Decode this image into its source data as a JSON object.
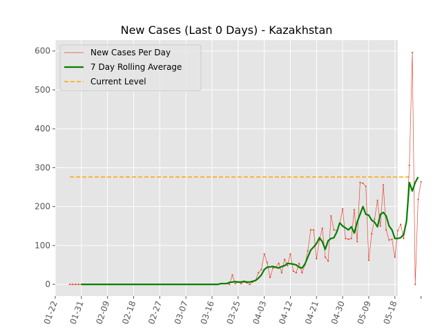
{
  "chart_data": {
    "type": "line",
    "title": "New Cases (Last 0 Days) - Kazakhstan",
    "xlabel": "",
    "ylabel": "",
    "ylim": [
      -30,
      628
    ],
    "xlim_days": [
      0,
      118
    ],
    "start_date": "2020-01-22",
    "x_ticks": [
      "01-22",
      "01-31",
      "02-09",
      "02-18",
      "02-27",
      "03-07",
      "03-16",
      "03-25",
      "04-03",
      "04-12",
      "04-21",
      "04-30",
      "05-09",
      "05-18"
    ],
    "y_ticks": [
      0,
      100,
      200,
      300,
      400,
      500,
      600
    ],
    "grid": true,
    "legend_position": "top-left",
    "colors": {
      "daily": "#E24A33",
      "rolling": "#008000",
      "level": "#FFA500",
      "plot_bg": "#E5E5E5",
      "grid": "#FFFFFF"
    },
    "series": [
      {
        "name": "New Cases Per Day",
        "style": "thin line with small markers",
        "x_start": "2020-01-27",
        "values": [
          0,
          0,
          0,
          0,
          0,
          0,
          0,
          0,
          0,
          0,
          0,
          0,
          0,
          0,
          0,
          0,
          0,
          0,
          0,
          0,
          0,
          0,
          0,
          0,
          0,
          0,
          0,
          0,
          0,
          0,
          0,
          0,
          0,
          0,
          0,
          0,
          0,
          0,
          0,
          0,
          0,
          0,
          0,
          0,
          0,
          0,
          0,
          0,
          0,
          0,
          0,
          0,
          2,
          2,
          2,
          0,
          24,
          2,
          6,
          2,
          6,
          4,
          0,
          6,
          10,
          30,
          38,
          78,
          56,
          18,
          42,
          44,
          54,
          30,
          64,
          48,
          78,
          34,
          30,
          54,
          30,
          50,
          86,
          140,
          140,
          66,
          114,
          144,
          70,
          60,
          176,
          140,
          138,
          156,
          194,
          118,
          116,
          118,
          192,
          110,
          262,
          260,
          252,
          62,
          130,
          168,
          216,
          150,
          256,
          140,
          114,
          116,
          70,
          138,
          154,
          118,
          164,
          306,
          596,
          0,
          218,
          264
        ]
      },
      {
        "name": "7 Day Rolling Average",
        "style": "thick line",
        "x_start": "2020-01-31",
        "values": [
          0,
          0,
          0,
          0,
          0,
          0,
          0,
          0,
          0,
          0,
          0,
          0,
          0,
          0,
          0,
          0,
          0,
          0,
          0,
          0,
          0,
          0,
          0,
          0,
          0,
          0,
          0,
          0,
          0,
          0,
          0,
          0,
          0,
          0,
          0,
          0,
          0,
          0,
          0,
          0,
          0,
          0,
          0,
          0,
          0,
          0,
          0,
          0,
          2,
          2,
          2,
          5,
          6,
          7,
          6,
          6,
          8,
          6,
          6,
          8,
          10,
          16,
          24,
          38,
          44,
          45,
          46,
          44,
          42,
          46,
          48,
          54,
          53,
          52,
          50,
          44,
          42,
          52,
          70,
          88,
          96,
          105,
          120,
          110,
          90,
          112,
          118,
          120,
          135,
          158,
          150,
          145,
          140,
          148,
          132,
          160,
          180,
          200,
          180,
          178,
          165,
          160,
          148,
          180,
          185,
          176,
          150,
          140,
          118,
          118,
          120,
          128,
          162,
          262,
          240,
          262,
          276
        ]
      },
      {
        "name": "Current Level",
        "style": "dashed horizontal line",
        "x_range": [
          "2020-01-27",
          "2020-05-23"
        ],
        "value": 276
      }
    ]
  }
}
